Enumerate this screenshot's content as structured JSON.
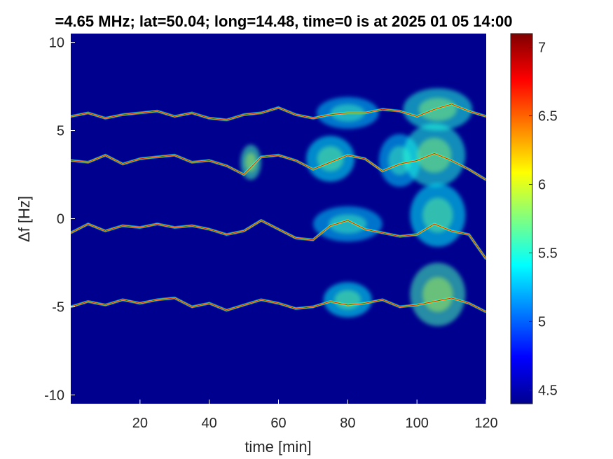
{
  "chart_data": {
    "type": "heatmap",
    "title": "=4.65 MHz;  lat=50.04; long=14.48, time=0 is at 2025 01 05 14:00",
    "xlabel": "time [min]",
    "ylabel": "Δf [Hz]",
    "xlim": [
      0,
      120
    ],
    "ylim": [
      -10.5,
      10.5
    ],
    "xticks": [
      "20",
      "40",
      "60",
      "80",
      "100",
      "120"
    ],
    "xtick_values": [
      20,
      40,
      60,
      80,
      100,
      120
    ],
    "yticks": [
      "10",
      "5",
      "0",
      "-5",
      "-10"
    ],
    "ytick_values": [
      10,
      5,
      0,
      -5,
      -10
    ],
    "colorbar": {
      "range": [
        4.4,
        7.1
      ],
      "tick_labels": [
        "7",
        "6.5",
        "6",
        "5.5",
        "5",
        "4.5"
      ],
      "tick_values": [
        7,
        6.5,
        6,
        5.5,
        5,
        4.5
      ],
      "colormap": "jet"
    },
    "background_color": "#00008F",
    "traces": [
      {
        "x": [
          0,
          5,
          10,
          15,
          20,
          25,
          30,
          35,
          40,
          45,
          50,
          55,
          60,
          65,
          70,
          75,
          80,
          85,
          90,
          95,
          100,
          105,
          110,
          115,
          120
        ],
        "y": [
          5.8,
          6.0,
          5.7,
          5.9,
          6.0,
          6.1,
          5.8,
          6.0,
          5.7,
          5.6,
          5.9,
          6.0,
          6.3,
          5.9,
          5.7,
          5.9,
          6.0,
          6.0,
          6.2,
          6.1,
          5.8,
          6.2,
          6.5,
          6.1,
          5.8
        ]
      },
      {
        "x": [
          0,
          5,
          10,
          15,
          20,
          25,
          30,
          35,
          40,
          45,
          50,
          55,
          60,
          65,
          70,
          75,
          80,
          85,
          90,
          95,
          100,
          105,
          110,
          115,
          120
        ],
        "y": [
          3.3,
          3.2,
          3.6,
          3.1,
          3.4,
          3.5,
          3.6,
          3.2,
          3.3,
          3.0,
          2.5,
          3.5,
          3.6,
          3.3,
          2.8,
          3.2,
          3.6,
          3.4,
          2.7,
          3.1,
          3.3,
          3.7,
          3.3,
          2.8,
          2.2
        ]
      },
      {
        "x": [
          0,
          5,
          10,
          15,
          20,
          25,
          30,
          35,
          40,
          45,
          50,
          55,
          60,
          65,
          70,
          75,
          80,
          85,
          90,
          95,
          100,
          105,
          110,
          115,
          120
        ],
        "y": [
          -0.8,
          -0.3,
          -0.7,
          -0.4,
          -0.5,
          -0.3,
          -0.5,
          -0.4,
          -0.6,
          -0.9,
          -0.7,
          -0.1,
          -0.6,
          -1.1,
          -1.2,
          -0.4,
          -0.1,
          -0.6,
          -0.8,
          -1.0,
          -0.9,
          -0.3,
          -0.7,
          -0.9,
          -2.3
        ]
      },
      {
        "x": [
          0,
          5,
          10,
          15,
          20,
          25,
          30,
          35,
          40,
          45,
          50,
          55,
          60,
          65,
          70,
          75,
          80,
          85,
          90,
          95,
          100,
          105,
          110,
          115,
          120
        ],
        "y": [
          -5.0,
          -4.7,
          -4.9,
          -4.6,
          -4.8,
          -4.6,
          -4.5,
          -5.0,
          -4.8,
          -5.2,
          -4.9,
          -4.6,
          -4.8,
          -5.1,
          -5.0,
          -4.7,
          -4.9,
          -4.8,
          -4.6,
          -5.0,
          -4.9,
          -4.7,
          -4.5,
          -4.8,
          -5.3
        ]
      }
    ],
    "clouds": [
      {
        "x": 52,
        "y": 3.2,
        "rx": 3,
        "ry": 1.0,
        "v": 5.6
      },
      {
        "x": 75,
        "y": 3.4,
        "rx": 7,
        "ry": 1.3,
        "v": 5.4
      },
      {
        "x": 95,
        "y": 3.3,
        "rx": 6,
        "ry": 1.5,
        "v": 5.3
      },
      {
        "x": 105,
        "y": 3.6,
        "rx": 9,
        "ry": 1.8,
        "v": 5.5
      },
      {
        "x": 80,
        "y": 6.0,
        "rx": 9,
        "ry": 0.9,
        "v": 5.3
      },
      {
        "x": 106,
        "y": 6.2,
        "rx": 10,
        "ry": 1.2,
        "v": 5.5
      },
      {
        "x": 80,
        "y": -0.3,
        "rx": 10,
        "ry": 1.0,
        "v": 5.3
      },
      {
        "x": 106,
        "y": 0.2,
        "rx": 8,
        "ry": 1.8,
        "v": 5.4
      },
      {
        "x": 80,
        "y": -4.6,
        "rx": 7,
        "ry": 1.0,
        "v": 5.4
      },
      {
        "x": 106,
        "y": -4.3,
        "rx": 8,
        "ry": 1.8,
        "v": 5.6
      }
    ]
  }
}
